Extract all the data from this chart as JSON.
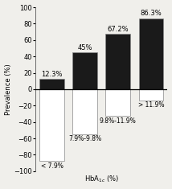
{
  "categories": [
    "< 7.9%",
    "7.9%-9.8%",
    "9.8%-11.9%",
    "> 11.9%"
  ],
  "positive_values": [
    12.3,
    45.0,
    67.2,
    86.3
  ],
  "negative_values": [
    -87.7,
    -55.0,
    -32.8,
    -13.7
  ],
  "positive_labels": [
    "12.3%",
    "45%",
    "67.2%",
    "86.3%"
  ],
  "negative_labels": [
    "< 7.9%",
    "7.9%-9.8%",
    "9.8%-11.9%",
    "> 11.9%"
  ],
  "bar_color_positive": "#1a1a1a",
  "bar_color_negative": "#ffffff",
  "bar_edge_color": "#888888",
  "ylim": [
    -100,
    100
  ],
  "yticks": [
    -100,
    -80,
    -60,
    -40,
    -20,
    0,
    20,
    40,
    60,
    80,
    100
  ],
  "ylabel": "Prevalence (%)",
  "xlabel_text": "HbA$_{1c}$ (%)",
  "label_fontsize": 6.0,
  "tick_fontsize": 6.0,
  "bar_width": 0.75,
  "bg_color": "#f0efeb"
}
